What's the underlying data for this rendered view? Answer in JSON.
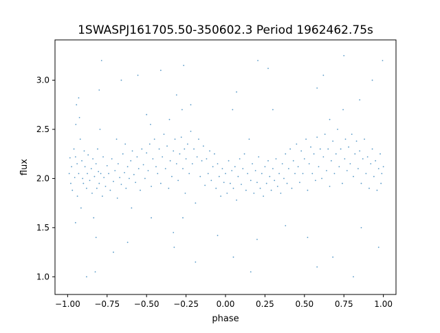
{
  "chart_data": {
    "type": "scatter",
    "title": "1SWASPJ161705.50-350602.3 Period 1962462.75s",
    "xlabel": "phase",
    "ylabel": "flux",
    "xlim": [
      -1.08,
      1.08
    ],
    "ylim": [
      0.82,
      3.41
    ],
    "grid": false,
    "legend": "none",
    "x_ticks": [
      -1.0,
      -0.75,
      -0.5,
      -0.25,
      0.0,
      0.25,
      0.5,
      0.75,
      1.0
    ],
    "x_tick_labels": [
      "−1.00",
      "−0.75",
      "−0.50",
      "−0.25",
      "0.00",
      "0.25",
      "0.50",
      "0.75",
      "1.00"
    ],
    "y_ticks": [
      1.0,
      1.5,
      2.0,
      2.5,
      3.0
    ],
    "y_tick_labels": [
      "1.0",
      "1.5",
      "2.0",
      "2.5",
      "3.0"
    ],
    "marker_color": "#1f77b4",
    "series": [
      {
        "points": [
          [
            -0.99,
            2.05
          ],
          [
            -0.985,
            2.21
          ],
          [
            -0.98,
            1.95
          ],
          [
            -0.975,
            2.12
          ],
          [
            -0.97,
            1.88
          ],
          [
            -0.96,
            2.3
          ],
          [
            -0.955,
            2.01
          ],
          [
            -0.95,
            2.22
          ],
          [
            -0.948,
            2.55
          ],
          [
            -0.944,
            2.75
          ],
          [
            -0.94,
            2.15
          ],
          [
            -0.938,
            1.82
          ],
          [
            -0.93,
            2.05
          ],
          [
            -0.925,
            2.62
          ],
          [
            -0.92,
            2.4
          ],
          [
            -0.915,
            1.7
          ],
          [
            -0.91,
            2.18
          ],
          [
            -0.905,
            2.0
          ],
          [
            -0.9,
            1.95
          ],
          [
            -0.895,
            2.28
          ],
          [
            -0.89,
            2.12
          ],
          [
            -0.88,
            1.9
          ],
          [
            -0.875,
            2.05
          ],
          [
            -0.87,
            2.24
          ],
          [
            -0.86,
            1.98
          ],
          [
            -0.85,
            2.1
          ],
          [
            -0.845,
            1.85
          ],
          [
            -0.84,
            2.2
          ],
          [
            -0.835,
            1.6
          ],
          [
            -0.83,
            2.02
          ],
          [
            -0.825,
            1.05
          ],
          [
            -0.82,
            2.15
          ],
          [
            -0.815,
            1.9
          ],
          [
            -0.81,
            2.3
          ],
          [
            -0.805,
            2.07
          ],
          [
            -0.8,
            1.95
          ],
          [
            -0.795,
            2.5
          ],
          [
            -0.79,
            2.05
          ],
          [
            -0.785,
            3.2
          ],
          [
            -0.78,
            1.82
          ],
          [
            -0.775,
            2.22
          ],
          [
            -0.77,
            2.01
          ],
          [
            -0.76,
            1.92
          ],
          [
            -0.75,
            2.13
          ],
          [
            -0.74,
            2.05
          ],
          [
            -0.73,
            1.88
          ],
          [
            -0.72,
            2.2
          ],
          [
            -0.71,
            1.97
          ],
          [
            -0.7,
            2.08
          ],
          [
            -0.69,
            2.4
          ],
          [
            -0.685,
            1.8
          ],
          [
            -0.68,
            2.15
          ],
          [
            -0.67,
            2.01
          ],
          [
            -0.66,
            1.94
          ],
          [
            -0.65,
            2.25
          ],
          [
            -0.64,
            2.06
          ],
          [
            -0.635,
            2.35
          ],
          [
            -0.63,
            1.9
          ],
          [
            -0.62,
            2.12
          ],
          [
            -0.61,
            2.0
          ],
          [
            -0.6,
            2.18
          ],
          [
            -0.595,
            1.7
          ],
          [
            -0.59,
            2.28
          ],
          [
            -0.58,
            2.04
          ],
          [
            -0.57,
            1.96
          ],
          [
            -0.56,
            2.22
          ],
          [
            -0.555,
            3.05
          ],
          [
            -0.55,
            2.1
          ],
          [
            -0.54,
            1.88
          ],
          [
            -0.53,
            2.3
          ],
          [
            -0.52,
            2.14
          ],
          [
            -0.51,
            2.0
          ],
          [
            -0.5,
            2.26
          ],
          [
            -0.49,
            2.08
          ],
          [
            -0.48,
            2.35
          ],
          [
            -0.475,
            2.55
          ],
          [
            -0.47,
            1.92
          ],
          [
            -0.46,
            2.2
          ],
          [
            -0.45,
            2.4
          ],
          [
            -0.44,
            2.12
          ],
          [
            -0.43,
            2.05
          ],
          [
            -0.42,
            2.3
          ],
          [
            -0.41,
            1.95
          ],
          [
            -0.4,
            2.22
          ],
          [
            -0.39,
            2.45
          ],
          [
            -0.38,
            2.1
          ],
          [
            -0.37,
            2.33
          ],
          [
            -0.36,
            1.9
          ],
          [
            -0.355,
            2.6
          ],
          [
            -0.35,
            2.18
          ],
          [
            -0.34,
            2.02
          ],
          [
            -0.33,
            2.28
          ],
          [
            -0.325,
            1.3
          ],
          [
            -0.32,
            2.4
          ],
          [
            -0.31,
            2.15
          ],
          [
            -0.3,
            1.98
          ],
          [
            -0.29,
            2.25
          ],
          [
            -0.28,
            2.42
          ],
          [
            -0.275,
            2.7
          ],
          [
            -0.27,
            2.1
          ],
          [
            -0.265,
            3.15
          ],
          [
            -0.26,
            2.3
          ],
          [
            -0.255,
            1.85
          ],
          [
            -0.25,
            2.2
          ],
          [
            -0.24,
            2.35
          ],
          [
            -0.23,
            2.05
          ],
          [
            -0.22,
            2.48
          ],
          [
            -0.21,
            2.15
          ],
          [
            -0.2,
            2.3
          ],
          [
            -0.19,
            1.75
          ],
          [
            -0.18,
            2.22
          ],
          [
            -0.17,
            2.4
          ],
          [
            -0.16,
            2.02
          ],
          [
            -0.15,
            2.18
          ],
          [
            -0.14,
            2.33
          ],
          [
            -0.13,
            1.93
          ],
          [
            -0.12,
            2.2
          ],
          [
            -0.11,
            2.05
          ],
          [
            -0.1,
            2.28
          ],
          [
            -0.09,
            1.98
          ],
          [
            -0.08,
            2.12
          ],
          [
            -0.07,
            2.25
          ],
          [
            -0.06,
            1.9
          ],
          [
            -0.05,
            2.15
          ],
          [
            -0.04,
            2.02
          ],
          [
            -0.03,
            1.82
          ],
          [
            -0.02,
            2.1
          ],
          [
            -0.01,
            1.96
          ],
          [
            0.0,
            2.05
          ],
          [
            0.01,
            1.85
          ],
          [
            0.02,
            2.18
          ],
          [
            0.03,
            1.95
          ],
          [
            0.04,
            2.08
          ],
          [
            0.045,
            2.7
          ],
          [
            0.05,
            1.9
          ],
          [
            0.06,
            2.12
          ],
          [
            0.07,
            1.78
          ],
          [
            0.08,
            2.02
          ],
          [
            0.09,
            2.2
          ],
          [
            0.1,
            1.94
          ],
          [
            0.11,
            2.1
          ],
          [
            0.12,
            2.25
          ],
          [
            0.13,
            1.88
          ],
          [
            0.14,
            2.05
          ],
          [
            0.15,
            2.4
          ],
          [
            0.16,
            1.98
          ],
          [
            0.17,
            2.15
          ],
          [
            0.18,
            1.85
          ],
          [
            0.19,
            2.08
          ],
          [
            0.2,
            1.96
          ],
          [
            0.205,
            3.2
          ],
          [
            0.21,
            2.22
          ],
          [
            0.22,
            1.9
          ],
          [
            0.23,
            2.05
          ],
          [
            0.24,
            1.82
          ],
          [
            0.25,
            2.12
          ],
          [
            0.26,
            1.95
          ],
          [
            0.27,
            2.18
          ],
          [
            0.28,
            2.02
          ],
          [
            0.29,
            1.88
          ],
          [
            0.3,
            2.1
          ],
          [
            0.31,
            1.98
          ],
          [
            0.32,
            2.2
          ],
          [
            0.33,
            1.92
          ],
          [
            0.34,
            2.05
          ],
          [
            0.35,
            1.85
          ],
          [
            0.36,
            2.15
          ],
          [
            0.37,
            2.0
          ],
          [
            0.38,
            2.25
          ],
          [
            0.39,
            1.95
          ],
          [
            0.4,
            2.1
          ],
          [
            0.41,
            2.3
          ],
          [
            0.42,
            1.9
          ],
          [
            0.43,
            2.18
          ],
          [
            0.44,
            2.05
          ],
          [
            0.45,
            2.35
          ],
          [
            0.46,
            2.12
          ],
          [
            0.47,
            1.96
          ],
          [
            0.48,
            2.28
          ],
          [
            0.49,
            2.05
          ],
          [
            0.5,
            2.2
          ],
          [
            0.51,
            2.4
          ],
          [
            0.52,
            1.88
          ],
          [
            0.53,
            2.15
          ],
          [
            0.54,
            2.32
          ],
          [
            0.55,
            2.05
          ],
          [
            0.56,
            2.25
          ],
          [
            0.57,
            1.98
          ],
          [
            0.58,
            2.42
          ],
          [
            0.59,
            2.12
          ],
          [
            0.6,
            2.3
          ],
          [
            0.61,
            2.0
          ],
          [
            0.62,
            2.22
          ],
          [
            0.63,
            2.45
          ],
          [
            0.64,
            2.08
          ],
          [
            0.65,
            2.3
          ],
          [
            0.66,
            1.92
          ],
          [
            0.67,
            2.18
          ],
          [
            0.68,
            2.38
          ],
          [
            0.69,
            2.05
          ],
          [
            0.7,
            2.25
          ],
          [
            0.71,
            2.5
          ],
          [
            0.72,
            2.12
          ],
          [
            0.73,
            2.3
          ],
          [
            0.74,
            1.95
          ],
          [
            0.745,
            2.7
          ],
          [
            0.75,
            3.25
          ],
          [
            0.755,
            2.2
          ],
          [
            0.76,
            2.4
          ],
          [
            0.77,
            2.08
          ],
          [
            0.78,
            2.32
          ],
          [
            0.79,
            2.15
          ],
          [
            0.8,
            2.45
          ],
          [
            0.81,
            2.02
          ],
          [
            0.82,
            2.25
          ],
          [
            0.83,
            2.38
          ],
          [
            0.84,
            2.1
          ],
          [
            0.85,
            2.28
          ],
          [
            0.86,
            1.95
          ],
          [
            0.87,
            2.2
          ],
          [
            0.88,
            2.4
          ],
          [
            0.89,
            2.05
          ],
          [
            0.9,
            2.22
          ],
          [
            0.91,
            1.9
          ],
          [
            0.92,
            2.15
          ],
          [
            0.93,
            2.3
          ],
          [
            0.94,
            2.02
          ],
          [
            0.95,
            2.18
          ],
          [
            0.96,
            1.88
          ],
          [
            0.97,
            2.1
          ],
          [
            0.98,
            2.25
          ],
          [
            0.985,
            1.95
          ],
          [
            0.99,
            2.05
          ],
          [
            0.995,
            3.2
          ],
          [
            1.0,
            2.12
          ],
          [
            -0.95,
            1.55
          ],
          [
            -0.82,
            1.4
          ],
          [
            -0.62,
            1.35
          ],
          [
            -0.47,
            1.6
          ],
          [
            -0.33,
            1.45
          ],
          [
            -0.27,
            1.6
          ],
          [
            -0.05,
            1.42
          ],
          [
            0.05,
            1.2
          ],
          [
            0.2,
            1.38
          ],
          [
            0.38,
            1.52
          ],
          [
            0.52,
            1.4
          ],
          [
            0.68,
            1.2
          ],
          [
            0.86,
            1.5
          ],
          [
            0.97,
            1.3
          ],
          [
            -0.88,
            1.0
          ],
          [
            -0.71,
            1.25
          ],
          [
            0.16,
            1.05
          ],
          [
            0.58,
            1.1
          ],
          [
            0.81,
            1.0
          ],
          [
            -0.19,
            1.15
          ],
          [
            -0.93,
            2.82
          ],
          [
            -0.8,
            2.9
          ],
          [
            -0.5,
            2.65
          ],
          [
            -0.31,
            2.85
          ],
          [
            -0.22,
            2.75
          ],
          [
            0.07,
            2.88
          ],
          [
            0.3,
            2.7
          ],
          [
            0.58,
            2.92
          ],
          [
            0.66,
            2.6
          ],
          [
            0.85,
            2.8
          ],
          [
            -0.66,
            3.0
          ],
          [
            -0.41,
            3.1
          ],
          [
            0.27,
            3.12
          ],
          [
            0.62,
            3.05
          ],
          [
            0.93,
            3.0
          ]
        ]
      }
    ]
  }
}
